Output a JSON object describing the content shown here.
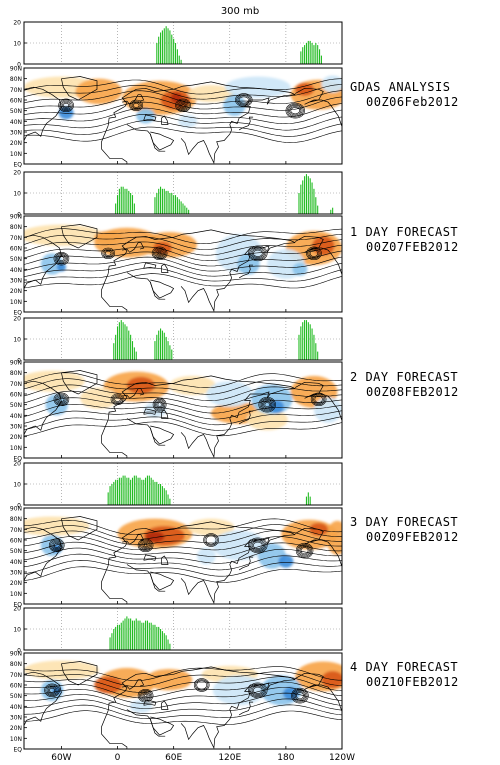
{
  "page": {
    "title": "300 mb"
  },
  "panels": [
    {
      "label": "GDAS ANALYSIS",
      "date": "00Z06Feb2012"
    },
    {
      "label": "1 DAY FORECAST",
      "date": "00Z07FEB2012"
    },
    {
      "label": "2 DAY FORECAST",
      "date": "00Z08FEB2012"
    },
    {
      "label": "3 DAY FORECAST",
      "date": "00Z09FEB2012"
    },
    {
      "label": "4 DAY FORECAST",
      "date": "00Z10FEB2012"
    }
  ],
  "colors": {
    "bars": "#22bb22",
    "warm_light": "#fde3b0",
    "warm_mid": "#f7a54a",
    "warm_dark": "#d9581a",
    "warm_deep": "#b22a10",
    "cool_light": "#cde6f7",
    "cool_mid": "#8cc4ec",
    "cool_dark": "#3d8ddb",
    "contour": "#000000",
    "coast": "#000000"
  },
  "chart_data": {
    "type": "bar",
    "bar_yticks": [
      "20",
      "10",
      "0"
    ],
    "bar_ylim": [
      0,
      20
    ],
    "map_lat_labels": [
      "90N",
      "80N",
      "70N",
      "60N",
      "50N",
      "40N",
      "30N",
      "20N",
      "10N",
      "EQ"
    ],
    "map_lon_labels": [
      "60W",
      "0",
      "60E",
      "120E",
      "180",
      "120W"
    ],
    "lon_range": [
      -100,
      240
    ],
    "lon_ticks": [
      -60,
      0,
      60,
      120,
      180,
      240
    ],
    "series": [
      {
        "bars": [
          {
            "lon": 42,
            "v": 10
          },
          {
            "lon": 44,
            "v": 13
          },
          {
            "lon": 46,
            "v": 15
          },
          {
            "lon": 48,
            "v": 16
          },
          {
            "lon": 50,
            "v": 17
          },
          {
            "lon": 52,
            "v": 18
          },
          {
            "lon": 54,
            "v": 17
          },
          {
            "lon": 56,
            "v": 16
          },
          {
            "lon": 58,
            "v": 14
          },
          {
            "lon": 60,
            "v": 12
          },
          {
            "lon": 62,
            "v": 10
          },
          {
            "lon": 64,
            "v": 7
          },
          {
            "lon": 66,
            "v": 4
          },
          {
            "lon": 68,
            "v": 2
          },
          {
            "lon": 196,
            "v": 6
          },
          {
            "lon": 198,
            "v": 8
          },
          {
            "lon": 200,
            "v": 9
          },
          {
            "lon": 202,
            "v": 10
          },
          {
            "lon": 204,
            "v": 11
          },
          {
            "lon": 206,
            "v": 11
          },
          {
            "lon": 208,
            "v": 10
          },
          {
            "lon": 210,
            "v": 9
          },
          {
            "lon": 212,
            "v": 10
          },
          {
            "lon": 214,
            "v": 9
          },
          {
            "lon": 216,
            "v": 7
          },
          {
            "lon": 218,
            "v": 4
          }
        ]
      },
      {
        "bars": [
          {
            "lon": -2,
            "v": 5
          },
          {
            "lon": 0,
            "v": 9
          },
          {
            "lon": 2,
            "v": 12
          },
          {
            "lon": 4,
            "v": 13
          },
          {
            "lon": 6,
            "v": 13
          },
          {
            "lon": 8,
            "v": 12
          },
          {
            "lon": 10,
            "v": 12
          },
          {
            "lon": 12,
            "v": 11
          },
          {
            "lon": 14,
            "v": 10
          },
          {
            "lon": 16,
            "v": 9
          },
          {
            "lon": 18,
            "v": 5
          },
          {
            "lon": 40,
            "v": 8
          },
          {
            "lon": 42,
            "v": 10
          },
          {
            "lon": 44,
            "v": 12
          },
          {
            "lon": 46,
            "v": 13
          },
          {
            "lon": 48,
            "v": 12
          },
          {
            "lon": 50,
            "v": 12
          },
          {
            "lon": 52,
            "v": 11
          },
          {
            "lon": 54,
            "v": 11
          },
          {
            "lon": 56,
            "v": 10
          },
          {
            "lon": 58,
            "v": 10
          },
          {
            "lon": 60,
            "v": 9
          },
          {
            "lon": 62,
            "v": 9
          },
          {
            "lon": 64,
            "v": 8
          },
          {
            "lon": 66,
            "v": 7
          },
          {
            "lon": 68,
            "v": 6
          },
          {
            "lon": 70,
            "v": 5
          },
          {
            "lon": 72,
            "v": 4
          },
          {
            "lon": 74,
            "v": 3
          },
          {
            "lon": 76,
            "v": 2
          },
          {
            "lon": 194,
            "v": 10
          },
          {
            "lon": 196,
            "v": 14
          },
          {
            "lon": 198,
            "v": 16
          },
          {
            "lon": 200,
            "v": 18
          },
          {
            "lon": 202,
            "v": 19
          },
          {
            "lon": 204,
            "v": 18
          },
          {
            "lon": 206,
            "v": 17
          },
          {
            "lon": 208,
            "v": 15
          },
          {
            "lon": 210,
            "v": 12
          },
          {
            "lon": 212,
            "v": 8
          },
          {
            "lon": 214,
            "v": 4
          },
          {
            "lon": 228,
            "v": 2
          },
          {
            "lon": 230,
            "v": 3
          }
        ]
      },
      {
        "bars": [
          {
            "lon": -4,
            "v": 8
          },
          {
            "lon": -2,
            "v": 12
          },
          {
            "lon": 0,
            "v": 16
          },
          {
            "lon": 2,
            "v": 18
          },
          {
            "lon": 4,
            "v": 19
          },
          {
            "lon": 6,
            "v": 18
          },
          {
            "lon": 8,
            "v": 17
          },
          {
            "lon": 10,
            "v": 16
          },
          {
            "lon": 12,
            "v": 14
          },
          {
            "lon": 14,
            "v": 12
          },
          {
            "lon": 16,
            "v": 9
          },
          {
            "lon": 18,
            "v": 6
          },
          {
            "lon": 20,
            "v": 4
          },
          {
            "lon": 40,
            "v": 9
          },
          {
            "lon": 42,
            "v": 12
          },
          {
            "lon": 44,
            "v": 14
          },
          {
            "lon": 46,
            "v": 15
          },
          {
            "lon": 48,
            "v": 14
          },
          {
            "lon": 50,
            "v": 13
          },
          {
            "lon": 52,
            "v": 11
          },
          {
            "lon": 54,
            "v": 9
          },
          {
            "lon": 56,
            "v": 7
          },
          {
            "lon": 58,
            "v": 5
          },
          {
            "lon": 194,
            "v": 12
          },
          {
            "lon": 196,
            "v": 16
          },
          {
            "lon": 198,
            "v": 18
          },
          {
            "lon": 200,
            "v": 19
          },
          {
            "lon": 202,
            "v": 19
          },
          {
            "lon": 204,
            "v": 18
          },
          {
            "lon": 206,
            "v": 17
          },
          {
            "lon": 208,
            "v": 15
          },
          {
            "lon": 210,
            "v": 12
          },
          {
            "lon": 212,
            "v": 8
          },
          {
            "lon": 214,
            "v": 4
          }
        ]
      },
      {
        "bars": [
          {
            "lon": -10,
            "v": 6
          },
          {
            "lon": -8,
            "v": 9
          },
          {
            "lon": -6,
            "v": 10
          },
          {
            "lon": -4,
            "v": 11
          },
          {
            "lon": -2,
            "v": 12
          },
          {
            "lon": 0,
            "v": 12
          },
          {
            "lon": 2,
            "v": 13
          },
          {
            "lon": 4,
            "v": 13
          },
          {
            "lon": 6,
            "v": 14
          },
          {
            "lon": 8,
            "v": 14
          },
          {
            "lon": 10,
            "v": 13
          },
          {
            "lon": 12,
            "v": 13
          },
          {
            "lon": 14,
            "v": 12
          },
          {
            "lon": 16,
            "v": 13
          },
          {
            "lon": 18,
            "v": 14
          },
          {
            "lon": 20,
            "v": 14
          },
          {
            "lon": 22,
            "v": 13
          },
          {
            "lon": 24,
            "v": 13
          },
          {
            "lon": 26,
            "v": 12
          },
          {
            "lon": 28,
            "v": 12
          },
          {
            "lon": 30,
            "v": 13
          },
          {
            "lon": 32,
            "v": 14
          },
          {
            "lon": 34,
            "v": 14
          },
          {
            "lon": 36,
            "v": 13
          },
          {
            "lon": 38,
            "v": 12
          },
          {
            "lon": 40,
            "v": 11
          },
          {
            "lon": 42,
            "v": 11
          },
          {
            "lon": 44,
            "v": 10
          },
          {
            "lon": 46,
            "v": 10
          },
          {
            "lon": 48,
            "v": 9
          },
          {
            "lon": 50,
            "v": 8
          },
          {
            "lon": 52,
            "v": 7
          },
          {
            "lon": 54,
            "v": 5
          },
          {
            "lon": 56,
            "v": 3
          },
          {
            "lon": 202,
            "v": 4
          },
          {
            "lon": 204,
            "v": 6
          },
          {
            "lon": 206,
            "v": 4
          }
        ]
      },
      {
        "bars": [
          {
            "lon": -8,
            "v": 6
          },
          {
            "lon": -6,
            "v": 8
          },
          {
            "lon": -4,
            "v": 10
          },
          {
            "lon": -2,
            "v": 11
          },
          {
            "lon": 0,
            "v": 12
          },
          {
            "lon": 2,
            "v": 12
          },
          {
            "lon": 4,
            "v": 13
          },
          {
            "lon": 6,
            "v": 14
          },
          {
            "lon": 8,
            "v": 15
          },
          {
            "lon": 10,
            "v": 16
          },
          {
            "lon": 12,
            "v": 15
          },
          {
            "lon": 14,
            "v": 15
          },
          {
            "lon": 16,
            "v": 14
          },
          {
            "lon": 18,
            "v": 14
          },
          {
            "lon": 20,
            "v": 15
          },
          {
            "lon": 22,
            "v": 14
          },
          {
            "lon": 24,
            "v": 14
          },
          {
            "lon": 26,
            "v": 13
          },
          {
            "lon": 28,
            "v": 13
          },
          {
            "lon": 30,
            "v": 14
          },
          {
            "lon": 32,
            "v": 14
          },
          {
            "lon": 34,
            "v": 13
          },
          {
            "lon": 36,
            "v": 13
          },
          {
            "lon": 38,
            "v": 12
          },
          {
            "lon": 40,
            "v": 12
          },
          {
            "lon": 42,
            "v": 11
          },
          {
            "lon": 44,
            "v": 11
          },
          {
            "lon": 46,
            "v": 10
          },
          {
            "lon": 48,
            "v": 9
          },
          {
            "lon": 50,
            "v": 8
          },
          {
            "lon": 52,
            "v": 7
          },
          {
            "lon": 54,
            "v": 5
          },
          {
            "lon": 56,
            "v": 3
          }
        ]
      }
    ]
  }
}
